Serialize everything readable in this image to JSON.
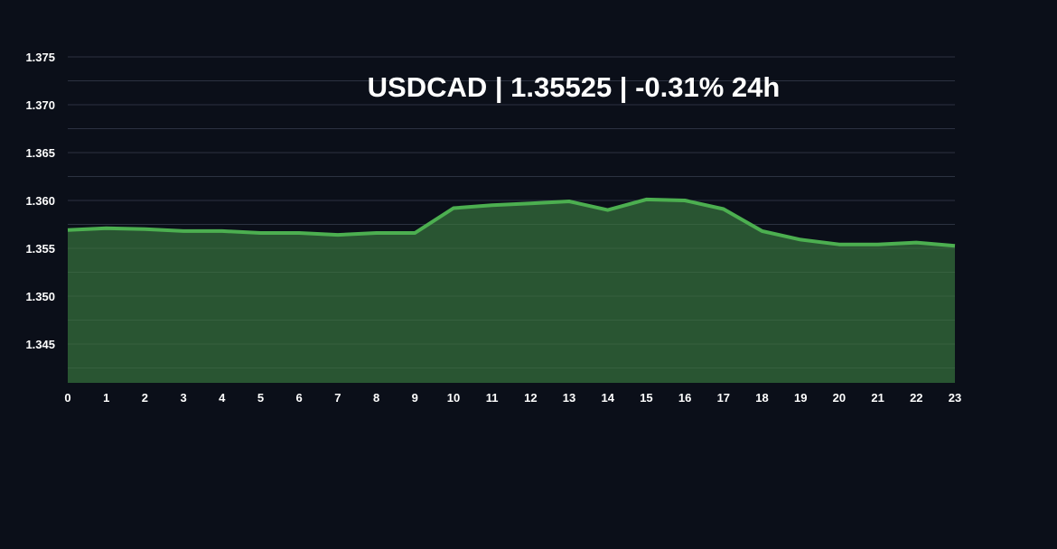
{
  "chart_data": {
    "type": "area",
    "title": "USDCAD | 1.35525 | -0.31% 24h",
    "symbol": "USDCAD",
    "price": "1.35525",
    "change_24h": "-0.31% 24h",
    "xlabel": "",
    "ylabel": "",
    "x": [
      0,
      1,
      2,
      3,
      4,
      5,
      6,
      7,
      8,
      9,
      10,
      11,
      12,
      13,
      14,
      15,
      16,
      17,
      18,
      19,
      20,
      21,
      22,
      23
    ],
    "categories": [
      "0",
      "1",
      "2",
      "3",
      "4",
      "5",
      "6",
      "7",
      "8",
      "9",
      "10",
      "11",
      "12",
      "13",
      "14",
      "15",
      "16",
      "17",
      "18",
      "19",
      "20",
      "21",
      "22",
      "23"
    ],
    "series": [
      {
        "name": "USDCAD",
        "values": [
          1.3569,
          1.3571,
          1.357,
          1.3568,
          1.3568,
          1.3566,
          1.3566,
          1.3564,
          1.3566,
          1.3566,
          1.3592,
          1.3595,
          1.3597,
          1.3599,
          1.359,
          1.3601,
          1.36,
          1.3591,
          1.3568,
          1.3559,
          1.3554,
          1.3554,
          1.3556,
          1.35525
        ]
      }
    ],
    "yticks": [
      "1.345",
      "1.350",
      "1.355",
      "1.360",
      "1.365",
      "1.370",
      "1.375"
    ],
    "ylim": [
      1.34094,
      1.375
    ],
    "xlim": [
      0,
      23
    ],
    "grid": true,
    "legend": "none",
    "colors": {
      "background": "#0b0f19",
      "line": "#4caf50",
      "fill": "#2b5a34",
      "grid": "#1f2636",
      "text": "#ffffff"
    }
  }
}
